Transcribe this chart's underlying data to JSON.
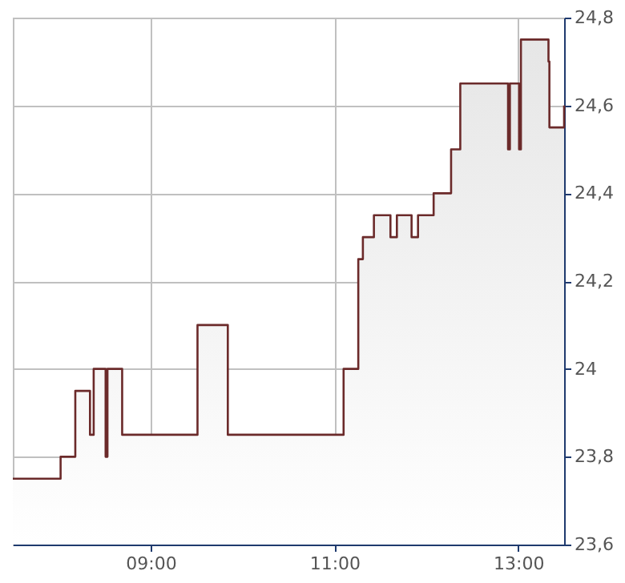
{
  "chart_data": {
    "type": "area",
    "x": [
      7.5,
      8.02,
      8.02,
      8.18,
      8.18,
      8.34,
      8.34,
      8.38,
      8.38,
      8.51,
      8.51,
      8.53,
      8.53,
      8.69,
      8.69,
      9.51,
      9.51,
      9.84,
      9.84,
      11.1,
      11.1,
      11.26,
      11.26,
      11.31,
      11.31,
      11.43,
      11.43,
      11.61,
      11.61,
      11.68,
      11.68,
      11.84,
      11.84,
      11.91,
      11.91,
      12.08,
      12.08,
      12.27,
      12.27,
      12.37,
      12.37,
      12.89,
      12.89,
      12.91,
      12.91,
      13.01,
      13.01,
      13.03,
      13.03,
      13.33,
      13.33,
      13.34,
      13.34,
      13.5,
      13.5
    ],
    "series": [
      {
        "color": "#6b2a2a",
        "values": [
          23.75,
          23.75,
          23.8,
          23.8,
          23.95,
          23.95,
          23.85,
          23.85,
          24.0,
          24.0,
          23.8,
          23.8,
          24.0,
          24.0,
          23.85,
          23.85,
          24.1,
          24.1,
          23.85,
          23.85,
          24.0,
          24.0,
          24.25,
          24.25,
          24.3,
          24.3,
          24.35,
          24.35,
          24.3,
          24.3,
          24.35,
          24.35,
          24.3,
          24.3,
          24.35,
          24.35,
          24.4,
          24.4,
          24.5,
          24.5,
          24.65,
          24.65,
          24.5,
          24.5,
          24.65,
          24.65,
          24.5,
          24.5,
          24.75,
          24.75,
          24.7,
          24.7,
          24.55,
          24.55,
          24.6
        ]
      }
    ],
    "xlim": [
      7.5,
      13.5
    ],
    "xticks": [
      {
        "value": 9,
        "label": "09:00"
      },
      {
        "value": 11,
        "label": "11:00"
      },
      {
        "value": 13,
        "label": "13:00"
      }
    ],
    "ylim": [
      23.6,
      24.8
    ],
    "yticks": [
      {
        "value": 23.6,
        "label": "23,6"
      },
      {
        "value": 23.8,
        "label": "23,8"
      },
      24,
      {
        "value": 24.2,
        "label": "24,2"
      },
      {
        "value": 24.4,
        "label": "24,4"
      },
      {
        "value": 24.6,
        "label": "24,6"
      },
      {
        "value": 24.8,
        "label": "24,8"
      }
    ],
    "grid": true
  }
}
